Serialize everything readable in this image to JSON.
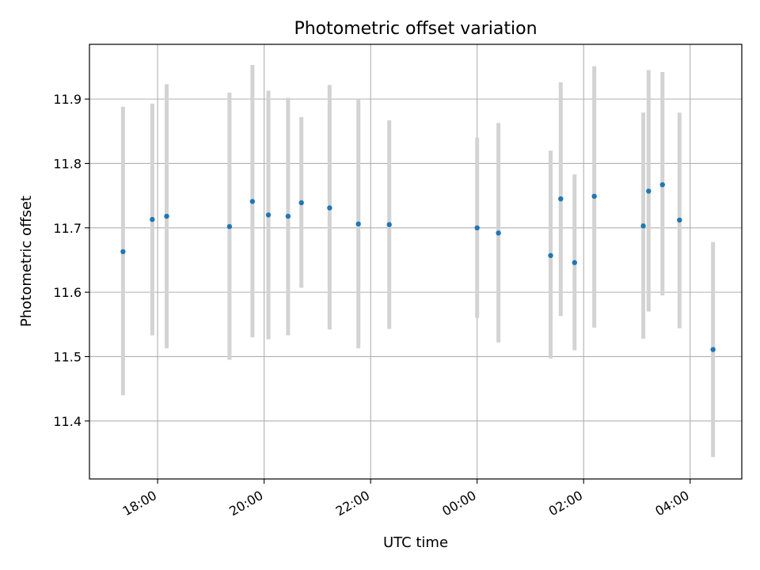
{
  "chart_data": {
    "type": "scatter",
    "title": "Photometric offset variation",
    "xlabel": "UTC time",
    "ylabel": "Photometric offset",
    "x_unit": "hours",
    "xlim": [
      16.72,
      28.97
    ],
    "ylim": [
      11.31,
      11.985
    ],
    "x_ticks": [
      {
        "value": 18,
        "label": "18:00"
      },
      {
        "value": 20,
        "label": "20:00"
      },
      {
        "value": 22,
        "label": "22:00"
      },
      {
        "value": 24,
        "label": "00:00"
      },
      {
        "value": 26,
        "label": "02:00"
      },
      {
        "value": 28,
        "label": "04:00"
      }
    ],
    "y_ticks": [
      {
        "value": 11.4,
        "label": "11.4"
      },
      {
        "value": 11.5,
        "label": "11.5"
      },
      {
        "value": 11.6,
        "label": "11.6"
      },
      {
        "value": 11.7,
        "label": "11.7"
      },
      {
        "value": 11.8,
        "label": "11.8"
      },
      {
        "value": 11.9,
        "label": "11.9"
      }
    ],
    "grid": true,
    "colors": {
      "point": "#1f77b4",
      "errorbar": "#d3d3d3",
      "grid": "#b0b0b0"
    },
    "points": [
      {
        "x": 17.35,
        "y": 11.663,
        "ylow": 11.44,
        "yhigh": 11.888
      },
      {
        "x": 17.9,
        "y": 11.713,
        "ylow": 11.533,
        "yhigh": 11.893
      },
      {
        "x": 18.17,
        "y": 11.718,
        "ylow": 11.513,
        "yhigh": 11.923
      },
      {
        "x": 19.35,
        "y": 11.702,
        "ylow": 11.495,
        "yhigh": 11.91
      },
      {
        "x": 19.78,
        "y": 11.741,
        "ylow": 11.53,
        "yhigh": 11.953
      },
      {
        "x": 20.08,
        "y": 11.72,
        "ylow": 11.527,
        "yhigh": 11.913
      },
      {
        "x": 20.45,
        "y": 11.718,
        "ylow": 11.533,
        "yhigh": 11.902
      },
      {
        "x": 20.7,
        "y": 11.739,
        "ylow": 11.607,
        "yhigh": 11.872
      },
      {
        "x": 21.23,
        "y": 11.731,
        "ylow": 11.542,
        "yhigh": 11.922
      },
      {
        "x": 21.77,
        "y": 11.706,
        "ylow": 11.513,
        "yhigh": 11.9
      },
      {
        "x": 22.35,
        "y": 11.705,
        "ylow": 11.543,
        "yhigh": 11.867
      },
      {
        "x": 24.0,
        "y": 11.7,
        "ylow": 11.56,
        "yhigh": 11.84
      },
      {
        "x": 24.4,
        "y": 11.692,
        "ylow": 11.522,
        "yhigh": 11.863
      },
      {
        "x": 25.38,
        "y": 11.657,
        "ylow": 11.497,
        "yhigh": 11.82
      },
      {
        "x": 25.57,
        "y": 11.745,
        "ylow": 11.563,
        "yhigh": 11.926
      },
      {
        "x": 25.83,
        "y": 11.646,
        "ylow": 11.51,
        "yhigh": 11.783
      },
      {
        "x": 26.2,
        "y": 11.749,
        "ylow": 11.545,
        "yhigh": 11.951
      },
      {
        "x": 27.12,
        "y": 11.703,
        "ylow": 11.528,
        "yhigh": 11.879
      },
      {
        "x": 27.22,
        "y": 11.757,
        "ylow": 11.57,
        "yhigh": 11.945
      },
      {
        "x": 27.48,
        "y": 11.767,
        "ylow": 11.595,
        "yhigh": 11.942
      },
      {
        "x": 27.8,
        "y": 11.712,
        "ylow": 11.544,
        "yhigh": 11.879
      },
      {
        "x": 28.43,
        "y": 11.511,
        "ylow": 11.344,
        "yhigh": 11.678
      }
    ]
  }
}
